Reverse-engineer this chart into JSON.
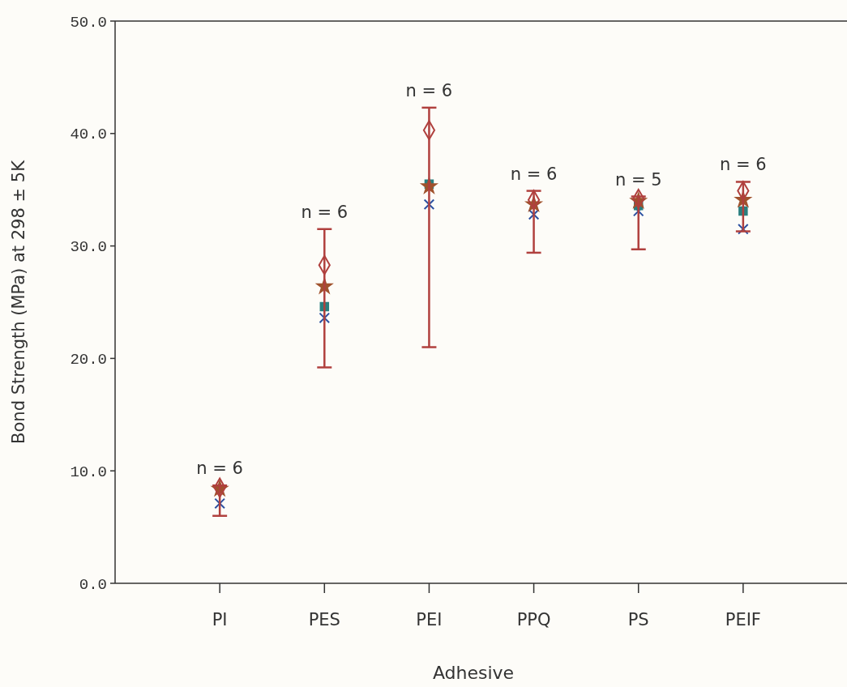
{
  "chart_data": {
    "type": "scatter",
    "xlabel": "Adhesive",
    "ylabel": "Bond Strength (MPa) at 298 ± 5K",
    "categories": [
      "PI",
      "PES",
      "PEI",
      "PPQ",
      "PS",
      "PEIF"
    ],
    "ylim": [
      0,
      50
    ],
    "yticks": [
      {
        "value": 0,
        "label": "0.0"
      },
      {
        "value": 10,
        "label": "10.0"
      },
      {
        "value": 20,
        "label": "20.0"
      },
      {
        "value": 30,
        "label": "30.0"
      },
      {
        "value": 40,
        "label": "40.0"
      },
      {
        "value": 50,
        "label": "50.0"
      }
    ],
    "grid": false,
    "series": [
      {
        "color": "#b0403e",
        "marker": "diamond",
        "values": [
          8.5,
          28.3,
          40.3,
          34.1,
          34.2,
          34.9
        ],
        "errors": [
          [
            6.0,
            8.7
          ],
          [
            19.2,
            31.5
          ],
          [
            21.0,
            42.3
          ],
          [
            29.4,
            34.9
          ],
          [
            29.7,
            34.4
          ],
          [
            31.3,
            35.7
          ]
        ]
      },
      {
        "color": "#a0522d",
        "marker": "star",
        "values": [
          8.4,
          26.4,
          35.3,
          33.7,
          34.0,
          34.1
        ]
      },
      {
        "color": "#2a7f7f",
        "marker": "square",
        "values": [
          null,
          24.6,
          35.5,
          null,
          33.6,
          33.1
        ]
      },
      {
        "color": "#2b4fa0",
        "marker": "cross",
        "values": [
          7.1,
          23.6,
          33.7,
          32.8,
          33.1,
          31.5
        ]
      }
    ],
    "annotations": [
      {
        "text": "n = 6",
        "x": "PI",
        "y": 8.7
      },
      {
        "text": "n = 6",
        "x": "PES",
        "y": 31.5
      },
      {
        "text": "n = 6",
        "x": "PEI",
        "y": 42.3
      },
      {
        "text": "n = 6",
        "x": "PPQ",
        "y": 34.9
      },
      {
        "text": "n = 5",
        "x": "PS",
        "y": 34.4
      },
      {
        "text": "n = 6",
        "x": "PEIF",
        "y": 35.7
      }
    ]
  }
}
